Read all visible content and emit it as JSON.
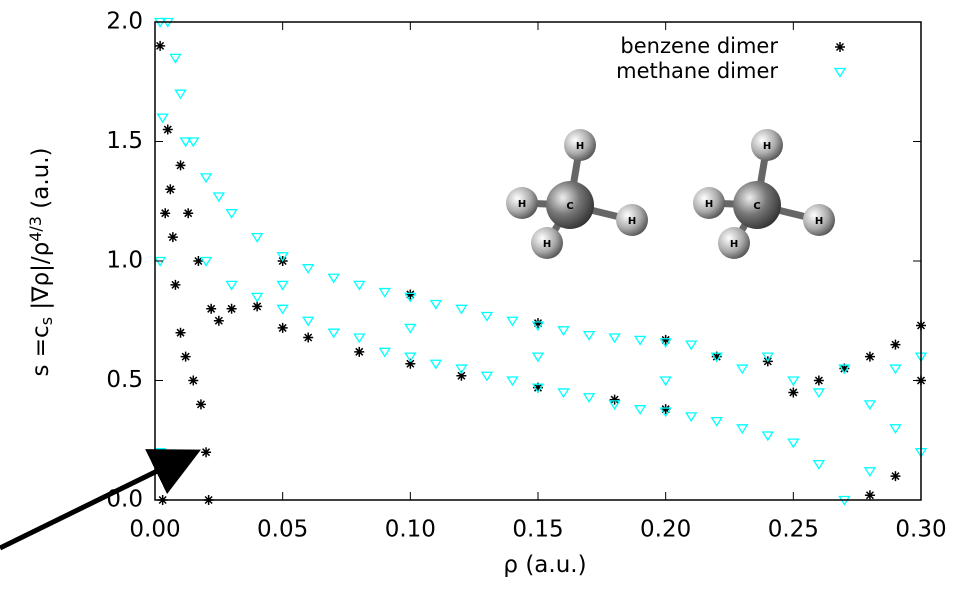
{
  "chart_data": {
    "type": "scatter",
    "xlabel": "ρ (a.u.)",
    "ylabel": "s =c_s |∇ρ|/ρ^{4/3} (a.u.)",
    "xlim": [
      0,
      0.3
    ],
    "ylim": [
      0,
      2.0
    ],
    "xticks": [
      {
        "value": 0,
        "label": "0.00"
      },
      {
        "value": 0.05,
        "label": "0.05"
      },
      {
        "value": 0.1,
        "label": "0.10"
      },
      {
        "value": 0.15,
        "label": "0.15"
      },
      {
        "value": 0.2,
        "label": "0.20"
      },
      {
        "value": 0.25,
        "label": "0.25"
      },
      {
        "value": 0.3,
        "label": "0.30"
      }
    ],
    "yticks": [
      {
        "value": 0,
        "label": "0.0"
      },
      {
        "value": 0.5,
        "label": "0.5"
      },
      {
        "value": 1,
        "label": "1.0"
      },
      {
        "value": 1.5,
        "label": "1.5"
      },
      {
        "value": 2,
        "label": "2.0"
      }
    ],
    "legend": "top-right",
    "series": [
      {
        "name": "benzene dimer",
        "color": "#000000",
        "marker": "star",
        "x": [
          0.005,
          0.006,
          0.007,
          0.008,
          0.01,
          0.01,
          0.012,
          0.013,
          0.015,
          0.017,
          0.018,
          0.02,
          0.021,
          0.022,
          0.025,
          0.03,
          0.04,
          0.05,
          0.06,
          0.08,
          0.1,
          0.12,
          0.15,
          0.18,
          0.2,
          0.05,
          0.1,
          0.15,
          0.2,
          0.22,
          0.24,
          0.25,
          0.26,
          0.27,
          0.28,
          0.28,
          0.29,
          0.29,
          0.3,
          0.3,
          0.003,
          0.002,
          0.004
        ],
        "values": [
          1.55,
          1.3,
          1.1,
          0.9,
          0.7,
          1.4,
          0.6,
          1.2,
          0.5,
          1.0,
          0.4,
          0.2,
          0.0,
          0.8,
          0.75,
          0.8,
          0.81,
          0.72,
          0.68,
          0.62,
          0.57,
          0.52,
          0.47,
          0.42,
          0.38,
          1.0,
          0.86,
          0.74,
          0.67,
          0.6,
          0.58,
          0.45,
          0.5,
          0.55,
          0.6,
          0.02,
          0.65,
          0.1,
          0.73,
          0.5,
          0.0,
          1.9,
          1.2
        ]
      },
      {
        "name": "methane dimer",
        "color": "#00ffff",
        "marker": "triangle-down",
        "x": [
          0.002,
          0.002,
          0.002,
          0.003,
          0.005,
          0.008,
          0.01,
          0.012,
          0.015,
          0.02,
          0.02,
          0.025,
          0.03,
          0.03,
          0.04,
          0.04,
          0.05,
          0.05,
          0.06,
          0.06,
          0.07,
          0.07,
          0.08,
          0.08,
          0.09,
          0.09,
          0.1,
          0.1,
          0.11,
          0.11,
          0.12,
          0.12,
          0.13,
          0.13,
          0.14,
          0.14,
          0.15,
          0.15,
          0.16,
          0.16,
          0.17,
          0.17,
          0.18,
          0.18,
          0.19,
          0.19,
          0.2,
          0.2,
          0.21,
          0.21,
          0.22,
          0.22,
          0.23,
          0.23,
          0.24,
          0.24,
          0.25,
          0.25,
          0.26,
          0.26,
          0.27,
          0.27,
          0.28,
          0.28,
          0.29,
          0.29,
          0.3,
          0.3,
          0.1,
          0.15,
          0.05,
          0.2
        ],
        "values": [
          2.0,
          1.0,
          0.2,
          1.6,
          2.0,
          1.85,
          1.7,
          1.5,
          1.5,
          1.35,
          1.0,
          1.27,
          1.2,
          0.9,
          1.1,
          0.85,
          1.02,
          0.8,
          0.97,
          0.75,
          0.93,
          0.7,
          0.9,
          0.68,
          0.87,
          0.62,
          0.85,
          0.6,
          0.82,
          0.57,
          0.8,
          0.55,
          0.77,
          0.52,
          0.75,
          0.5,
          0.73,
          0.47,
          0.71,
          0.45,
          0.69,
          0.43,
          0.68,
          0.4,
          0.67,
          0.38,
          0.66,
          0.37,
          0.65,
          0.35,
          0.6,
          0.33,
          0.55,
          0.3,
          0.6,
          0.27,
          0.5,
          0.24,
          0.45,
          0.15,
          0.0,
          0.55,
          0.4,
          0.12,
          0.55,
          0.3,
          0.6,
          0.2,
          0.72,
          0.6,
          0.9,
          0.5
        ]
      }
    ],
    "inset": [
      {
        "atoms": [
          "H",
          "H",
          "C",
          "H",
          "H"
        ]
      },
      {
        "atoms": [
          "H",
          "H",
          "C",
          "H",
          "H"
        ]
      }
    ]
  }
}
